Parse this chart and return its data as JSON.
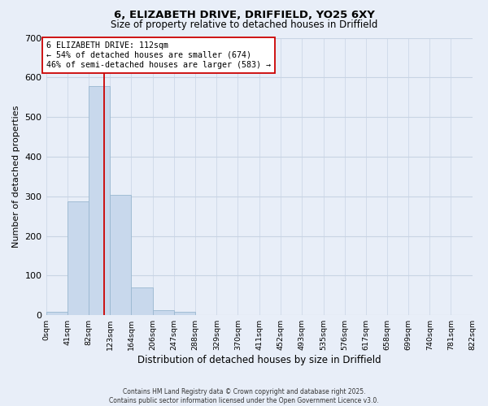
{
  "title1": "6, ELIZABETH DRIVE, DRIFFIELD, YO25 6XY",
  "title2": "Size of property relative to detached houses in Driffield",
  "xlabel": "Distribution of detached houses by size in Driffield",
  "ylabel": "Number of detached properties",
  "bar_edges": [
    0,
    41,
    82,
    123,
    164,
    206,
    247,
    288,
    329,
    370,
    411,
    452,
    493,
    535,
    576,
    617,
    658,
    699,
    740,
    781,
    822
  ],
  "bar_heights": [
    8,
    287,
    578,
    303,
    70,
    13,
    8,
    0,
    0,
    0,
    0,
    0,
    0,
    0,
    0,
    0,
    0,
    0,
    0,
    0
  ],
  "bar_color": "#c8d8ec",
  "bar_edge_color": "#99b8d0",
  "grid_color": "#c8d4e4",
  "bg_color": "#e8eef8",
  "property_line_x": 112,
  "property_line_color": "#cc0000",
  "annotation_line1": "6 ELIZABETH DRIVE: 112sqm",
  "annotation_line2": "← 54% of detached houses are smaller (674)",
  "annotation_line3": "46% of semi-detached houses are larger (583) →",
  "annotation_box_color": "#ffffff",
  "annotation_box_edge": "#cc0000",
  "ylim": [
    0,
    700
  ],
  "yticks": [
    0,
    100,
    200,
    300,
    400,
    500,
    600,
    700
  ],
  "tick_labels": [
    "0sqm",
    "41sqm",
    "82sqm",
    "123sqm",
    "164sqm",
    "206sqm",
    "247sqm",
    "288sqm",
    "329sqm",
    "370sqm",
    "411sqm",
    "452sqm",
    "493sqm",
    "535sqm",
    "576sqm",
    "617sqm",
    "658sqm",
    "699sqm",
    "740sqm",
    "781sqm",
    "822sqm"
  ],
  "footer1": "Contains HM Land Registry data © Crown copyright and database right 2025.",
  "footer2": "Contains public sector information licensed under the Open Government Licence v3.0."
}
